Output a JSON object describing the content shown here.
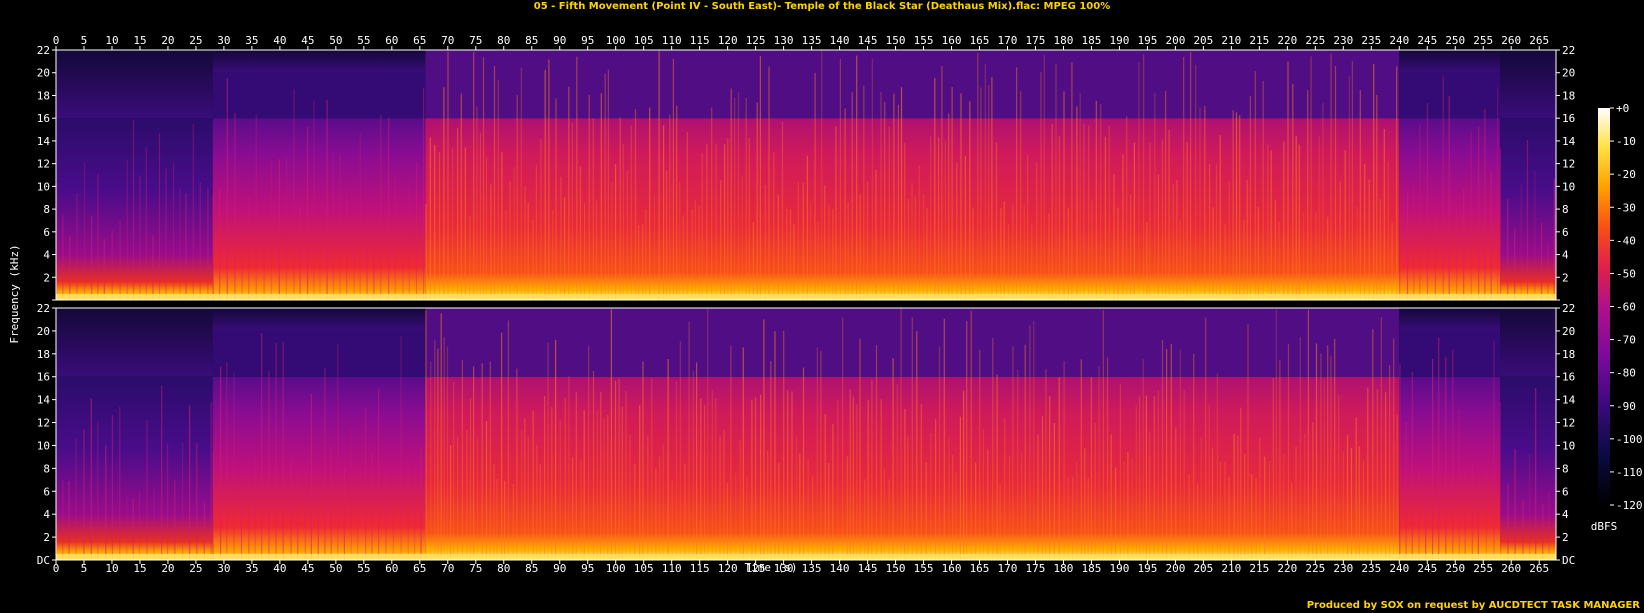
{
  "title": "05 - Fifth Movement (Point IV - South East)- Temple of the Black Star (Deathaus Mix).flac: MPEG 100%",
  "credit": "Produced by SOX on request by AUCDTECT TASK MANAGER",
  "chart_data": {
    "type": "heatmap",
    "xlabel": "Time (s)",
    "ylabel": "Frequency (kHz)",
    "xlim": [
      0,
      268
    ],
    "xticks": [
      "0",
      "5",
      "10",
      "15",
      "20",
      "25",
      "30",
      "35",
      "40",
      "45",
      "50",
      "55",
      "60",
      "65",
      "70",
      "75",
      "80",
      "85",
      "90",
      "95",
      "100",
      "105",
      "110",
      "115",
      "120",
      "125",
      "130",
      "135",
      "140",
      "145",
      "150",
      "155",
      "160",
      "165",
      "170",
      "175",
      "180",
      "185",
      "190",
      "195",
      "200",
      "205",
      "210",
      "215",
      "220",
      "225",
      "230",
      "235",
      "240",
      "245",
      "250",
      "255",
      "260",
      "265"
    ],
    "ylim": [
      0,
      22
    ],
    "yticks": [
      "DC",
      "2",
      "4",
      "6",
      "8",
      "10",
      "12",
      "14",
      "16",
      "18",
      "20",
      "22"
    ],
    "channels": 2,
    "colorbar": {
      "label": "dBFS",
      "ticks": [
        "+0",
        "-10",
        "-20",
        "-30",
        "-40",
        "-50",
        "-60",
        "-70",
        "-80",
        "-90",
        "-100",
        "-110",
        "-120"
      ],
      "range": [
        -120,
        0
      ],
      "colors": [
        "#000000",
        "#0a0a40",
        "#3a0a7a",
        "#7a0a9a",
        "#b0108a",
        "#e0204a",
        "#f85018",
        "#ffa000",
        "#ffe040",
        "#ffffff"
      ]
    },
    "lowpass_cutoff_khz": 16,
    "segments": [
      {
        "start": 0,
        "end": 28,
        "max_khz": 16,
        "level": "low"
      },
      {
        "start": 28,
        "end": 66,
        "max_khz": 20,
        "level": "mid"
      },
      {
        "start": 66,
        "end": 240,
        "max_khz": 22,
        "level": "high"
      },
      {
        "start": 240,
        "end": 258,
        "max_khz": 20,
        "level": "mid"
      },
      {
        "start": 258,
        "end": 268,
        "max_khz": 16,
        "level": "low"
      }
    ]
  }
}
